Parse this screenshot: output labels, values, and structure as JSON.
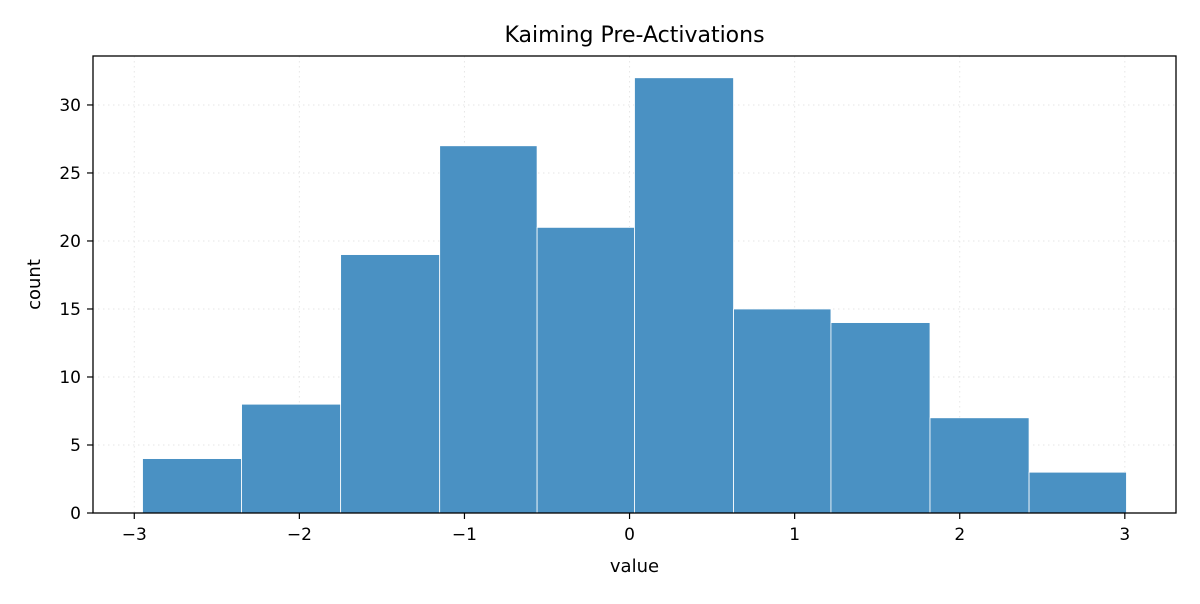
{
  "chart_data": {
    "type": "bar",
    "title": "Kaiming Pre-Activations",
    "xlabel": "value",
    "ylabel": "count",
    "bins": [
      {
        "x0": -2.95,
        "x1": -2.35,
        "count": 4
      },
      {
        "x0": -2.35,
        "x1": -1.75,
        "count": 8
      },
      {
        "x0": -1.75,
        "x1": -1.15,
        "count": 19
      },
      {
        "x0": -1.15,
        "x1": -0.56,
        "count": 27
      },
      {
        "x0": -0.56,
        "x1": 0.03,
        "count": 21
      },
      {
        "x0": 0.03,
        "x1": 0.63,
        "count": 32
      },
      {
        "x0": 0.63,
        "x1": 1.22,
        "count": 15
      },
      {
        "x0": 1.22,
        "x1": 1.82,
        "count": 14
      },
      {
        "x0": 1.82,
        "x1": 2.42,
        "count": 7
      },
      {
        "x0": 2.42,
        "x1": 3.01,
        "count": 3
      }
    ],
    "xlim": [
      -3.25,
      3.31
    ],
    "ylim": [
      0,
      33.6
    ],
    "xticks": [
      {
        "value": -3,
        "label": "−3"
      },
      {
        "value": -2,
        "label": "−2"
      },
      {
        "value": -1,
        "label": "−1"
      },
      {
        "value": 0,
        "label": "0"
      },
      {
        "value": 1,
        "label": "1"
      },
      {
        "value": 2,
        "label": "2"
      },
      {
        "value": 3,
        "label": "3"
      }
    ],
    "yticks": [
      {
        "value": 0,
        "label": "0"
      },
      {
        "value": 5,
        "label": "5"
      },
      {
        "value": 10,
        "label": "10"
      },
      {
        "value": 15,
        "label": "15"
      },
      {
        "value": 20,
        "label": "20"
      },
      {
        "value": 25,
        "label": "25"
      },
      {
        "value": 30,
        "label": "30"
      }
    ],
    "grid": true,
    "colors": {
      "bar": "#4a91c3",
      "bar_edge": "#ffffff",
      "grid": "#e6e6e6",
      "axis": "#000000"
    }
  }
}
